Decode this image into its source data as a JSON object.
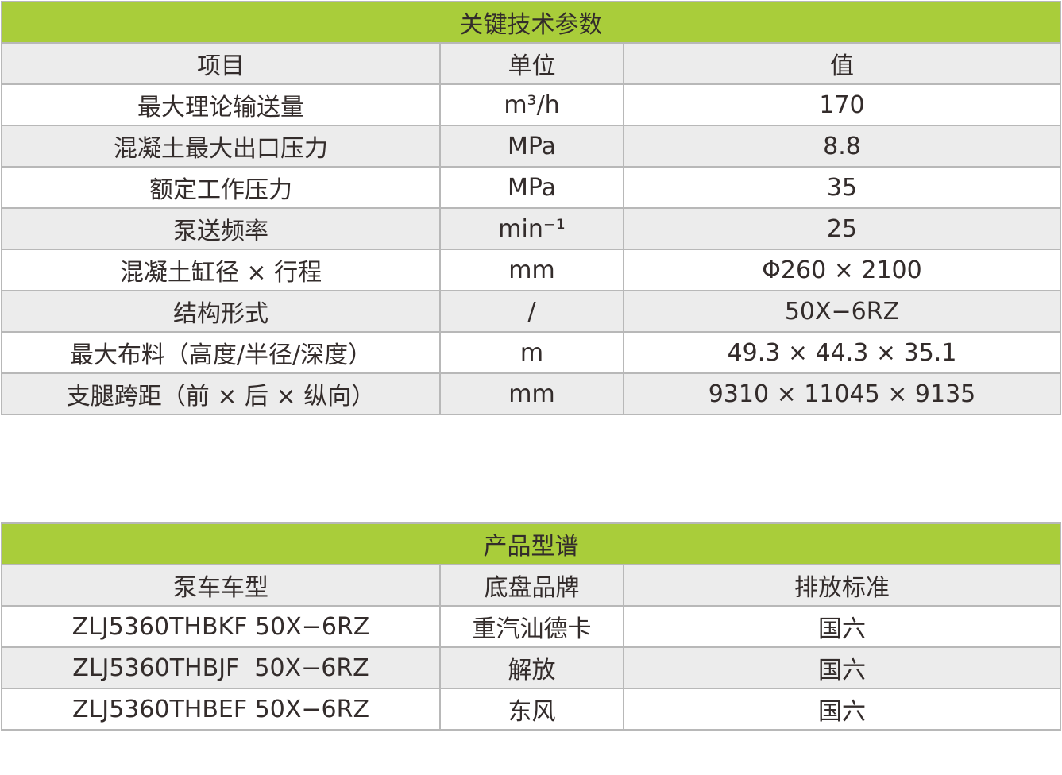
{
  "specs": {
    "title": "关键技术参数",
    "headers": [
      "项目",
      "单位",
      "值"
    ],
    "rows": [
      [
        "最大理论输送量",
        "m³/h",
        "170"
      ],
      [
        "混凝土最大出口压力",
        "MPa",
        "8.8"
      ],
      [
        "额定工作压力",
        "MPa",
        "35"
      ],
      [
        "泵送频率",
        "min⁻¹",
        "25"
      ],
      [
        "混凝土缸径 × 行程",
        "mm",
        "Φ260 × 2100"
      ],
      [
        "结构形式",
        "/",
        "50X−6RZ"
      ],
      [
        "最大布料（高度/半径/深度）",
        "m",
        "49.3 × 44.3 × 35.1"
      ],
      [
        "支腿跨距（前 × 后 × 纵向）",
        "mm",
        "9310 × 11045 × 9135"
      ]
    ]
  },
  "models": {
    "title": "产品型谱",
    "headers": [
      "泵车车型",
      "底盘品牌",
      "排放标准"
    ],
    "rows": [
      [
        "ZLJ5360THBKF 50X−6RZ",
        "重汽汕德卡",
        "国六"
      ],
      [
        "ZLJ5360THBJF  50X−6RZ",
        "解放",
        "国六"
      ],
      [
        "ZLJ5360THBEF 50X−6RZ",
        "东风",
        "国六"
      ]
    ]
  },
  "colors": {
    "header_green": "#a9cd3a",
    "row_gray": "#ececec",
    "border": "#b8b8b8",
    "text": "#332c2b"
  }
}
